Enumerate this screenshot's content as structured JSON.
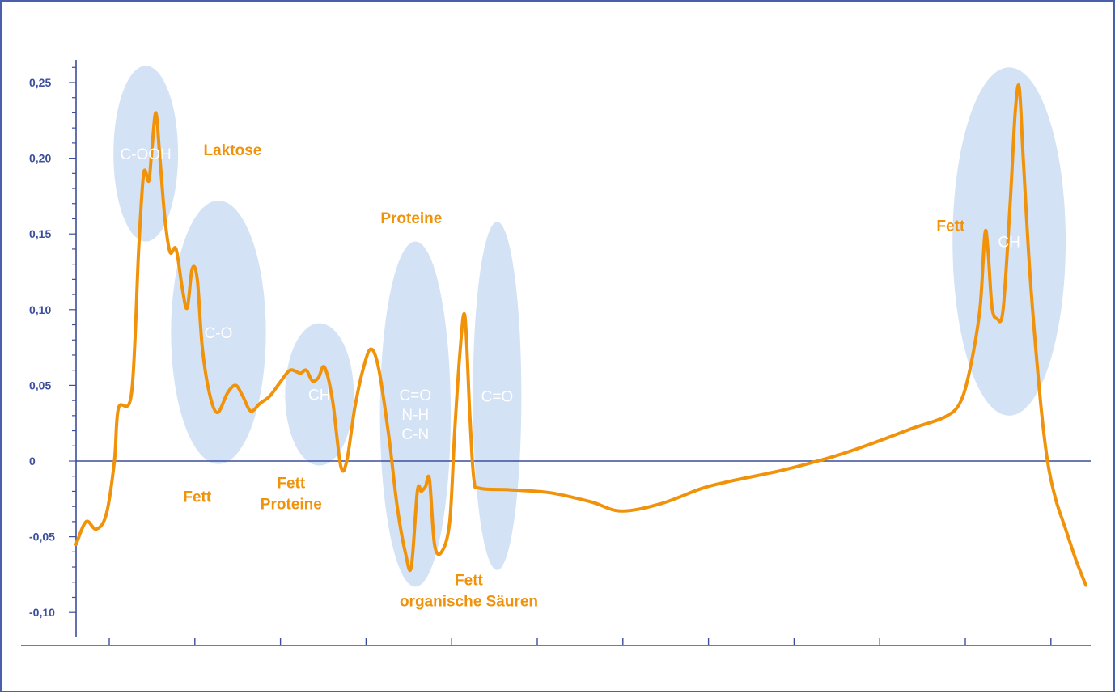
{
  "chart_data": {
    "type": "line",
    "title": "",
    "xlabel": "",
    "ylabel": "",
    "ylim": [
      -0.11,
      0.27
    ],
    "yticks": [
      {
        "value": 0.25,
        "label": "0,25"
      },
      {
        "value": 0.2,
        "label": "0,20"
      },
      {
        "value": 0.15,
        "label": "0,15"
      },
      {
        "value": 0.1,
        "label": "0,10"
      },
      {
        "value": 0.05,
        "label": "0,05"
      },
      {
        "value": 0.0,
        "label": "0"
      },
      {
        "value": -0.05,
        "label": "-0,05"
      },
      {
        "value": -0.1,
        "label": "-0,10"
      }
    ],
    "xticks_count": 12,
    "grid": false,
    "legend": "none",
    "line_color": "#f0920a",
    "axis_color": "#3b4f9c",
    "region_color": "#d3e2f5",
    "series": [
      {
        "values": [
          [
            0.0,
            -0.055
          ],
          [
            0.01,
            -0.04
          ],
          [
            0.02,
            -0.045
          ],
          [
            0.03,
            -0.035
          ],
          [
            0.038,
            0.0
          ],
          [
            0.042,
            0.035
          ],
          [
            0.055,
            0.045
          ],
          [
            0.062,
            0.14
          ],
          [
            0.067,
            0.19
          ],
          [
            0.072,
            0.185
          ],
          [
            0.075,
            0.205
          ],
          [
            0.079,
            0.23
          ],
          [
            0.083,
            0.2
          ],
          [
            0.088,
            0.16
          ],
          [
            0.093,
            0.138
          ],
          [
            0.099,
            0.14
          ],
          [
            0.105,
            0.115
          ],
          [
            0.11,
            0.101
          ],
          [
            0.115,
            0.127
          ],
          [
            0.12,
            0.12
          ],
          [
            0.125,
            0.075
          ],
          [
            0.132,
            0.045
          ],
          [
            0.14,
            0.032
          ],
          [
            0.15,
            0.045
          ],
          [
            0.158,
            0.05
          ],
          [
            0.165,
            0.043
          ],
          [
            0.173,
            0.033
          ],
          [
            0.182,
            0.038
          ],
          [
            0.192,
            0.043
          ],
          [
            0.202,
            0.052
          ],
          [
            0.212,
            0.06
          ],
          [
            0.222,
            0.058
          ],
          [
            0.228,
            0.06
          ],
          [
            0.234,
            0.053
          ],
          [
            0.24,
            0.055
          ],
          [
            0.246,
            0.062
          ],
          [
            0.254,
            0.04
          ],
          [
            0.262,
            -0.003
          ],
          [
            0.268,
            0.0
          ],
          [
            0.276,
            0.035
          ],
          [
            0.284,
            0.06
          ],
          [
            0.292,
            0.074
          ],
          [
            0.3,
            0.06
          ],
          [
            0.31,
            0.015
          ],
          [
            0.318,
            -0.03
          ],
          [
            0.326,
            -0.06
          ],
          [
            0.332,
            -0.07
          ],
          [
            0.338,
            -0.02
          ],
          [
            0.342,
            -0.02
          ],
          [
            0.346,
            -0.017
          ],
          [
            0.35,
            -0.012
          ],
          [
            0.355,
            -0.055
          ],
          [
            0.362,
            -0.06
          ],
          [
            0.37,
            -0.04
          ],
          [
            0.375,
            0.02
          ],
          [
            0.38,
            0.07
          ],
          [
            0.385,
            0.096
          ],
          [
            0.39,
            0.03
          ],
          [
            0.394,
            -0.012
          ],
          [
            0.4,
            -0.018
          ],
          [
            0.43,
            -0.019
          ],
          [
            0.47,
            -0.021
          ],
          [
            0.51,
            -0.027
          ],
          [
            0.54,
            -0.033
          ],
          [
            0.58,
            -0.028
          ],
          [
            0.62,
            -0.018
          ],
          [
            0.65,
            -0.013
          ],
          [
            0.7,
            -0.006
          ],
          [
            0.75,
            0.003
          ],
          [
            0.79,
            0.012
          ],
          [
            0.83,
            0.022
          ],
          [
            0.86,
            0.029
          ],
          [
            0.875,
            0.038
          ],
          [
            0.885,
            0.06
          ],
          [
            0.895,
            0.1
          ],
          [
            0.9,
            0.15
          ],
          [
            0.903,
            0.14
          ],
          [
            0.907,
            0.102
          ],
          [
            0.912,
            0.094
          ],
          [
            0.918,
            0.1
          ],
          [
            0.925,
            0.17
          ],
          [
            0.93,
            0.23
          ],
          [
            0.934,
            0.247
          ],
          [
            0.938,
            0.2
          ],
          [
            0.945,
            0.12
          ],
          [
            0.955,
            0.04
          ],
          [
            0.962,
            0.0
          ],
          [
            0.97,
            -0.025
          ],
          [
            0.98,
            -0.045
          ],
          [
            0.99,
            -0.065
          ],
          [
            1.0,
            -0.082
          ]
        ]
      }
    ],
    "regions": [
      {
        "label": "C-OOH",
        "x": 0.069,
        "y": 0.203,
        "rx": 0.032,
        "ry": 0.058
      },
      {
        "label": "C-O",
        "x": 0.141,
        "y": 0.085,
        "rx": 0.047,
        "ry": 0.087
      },
      {
        "label": "CH",
        "x": 0.241,
        "y": 0.044,
        "rx": 0.034,
        "ry": 0.047
      },
      {
        "label": "C=O\nN-H\nC-N",
        "x": 0.336,
        "y": 0.031,
        "rx": 0.035,
        "ry": 0.114
      },
      {
        "label": "C=O",
        "x": 0.417,
        "y": 0.043,
        "rx": 0.024,
        "ry": 0.115
      },
      {
        "label": "CH",
        "x": 0.924,
        "y": 0.145,
        "rx": 0.056,
        "ry": 0.115
      }
    ],
    "annotations": [
      {
        "text": "Laktose",
        "x": 0.155,
        "y": 0.202,
        "anchor": "middle"
      },
      {
        "text": "Proteine",
        "x": 0.332,
        "y": 0.157,
        "anchor": "middle"
      },
      {
        "text": "Fett",
        "x": 0.88,
        "y": 0.152,
        "anchor": "end"
      },
      {
        "text": "Fett",
        "x": 0.12,
        "y": -0.027,
        "anchor": "middle"
      },
      {
        "text": "Fett\nProteine",
        "x": 0.213,
        "y": -0.018,
        "anchor": "middle"
      },
      {
        "text": "Fett\norganische Säuren",
        "x": 0.389,
        "y": -0.082,
        "anchor": "middle"
      }
    ]
  }
}
